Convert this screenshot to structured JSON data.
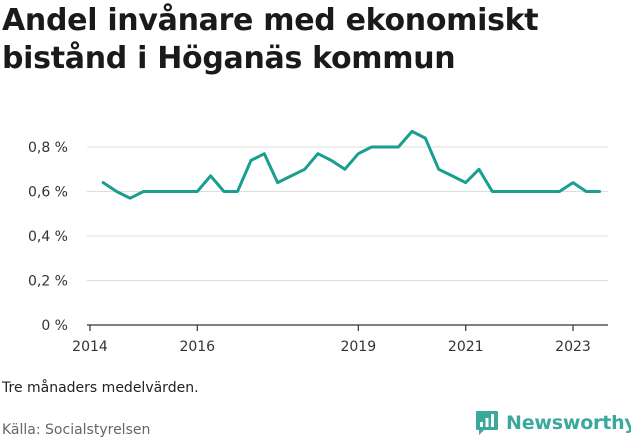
{
  "title": "Andel invånare med ekonomiskt bistånd i Höganäs kommun",
  "note": "Tre månaders medelvärden.",
  "source": "Källa: Socialstyrelsen",
  "brand": {
    "name": "Newsworthy",
    "icon": "newsworthy-logo-icon",
    "color": "#3aa89a"
  },
  "colors": {
    "line": "#1a9e8f",
    "grid": "#dddddd",
    "axis": "#333333"
  },
  "chart_data": {
    "type": "line",
    "title": "Andel invånare med ekonomiskt bistånd i Höganäs kommun",
    "xlabel": "",
    "ylabel": "",
    "y_unit": "%",
    "ylim": [
      0,
      0.85
    ],
    "y_ticks": [
      0,
      0.2,
      0.4,
      0.6,
      0.8
    ],
    "y_tick_labels": [
      "0 %",
      "0,2 %",
      "0,4 %",
      "0,6 %",
      "0,8 %"
    ],
    "x_ticks": [
      "2014-01-01",
      "2016-01-01",
      "2019-01-01",
      "2021-01-01",
      "2023-01-01"
    ],
    "x_tick_labels": [
      "2014",
      "2016",
      "2019",
      "2021",
      "2023"
    ],
    "grid": true,
    "legend": "none",
    "series": [
      {
        "x": [
          "2014-04-01",
          "2014-07-01",
          "2014-10-01",
          "2015-01-01",
          "2015-04-01",
          "2015-07-01",
          "2015-10-01",
          "2016-01-01",
          "2016-04-01",
          "2016-07-01",
          "2016-10-01",
          "2017-01-01",
          "2017-04-01",
          "2017-07-01",
          "2017-10-01",
          "2018-01-01",
          "2018-04-01",
          "2018-07-01",
          "2018-10-01",
          "2019-01-01",
          "2019-04-01",
          "2019-07-01",
          "2019-10-01",
          "2020-01-01",
          "2020-04-01",
          "2020-07-01",
          "2020-10-01",
          "2021-01-01",
          "2021-04-01",
          "2021-07-01",
          "2021-10-01",
          "2022-01-01",
          "2022-04-01",
          "2022-07-01",
          "2022-10-01",
          "2023-01-01",
          "2023-04-01",
          "2023-07-01"
        ],
        "y": [
          0.64,
          0.6,
          0.57,
          0.6,
          0.6,
          0.6,
          0.6,
          0.6,
          0.67,
          0.6,
          0.6,
          0.74,
          0.77,
          0.64,
          0.67,
          0.7,
          0.77,
          0.74,
          0.7,
          0.77,
          0.8,
          0.8,
          0.8,
          0.87,
          0.84,
          0.7,
          0.67,
          0.64,
          0.7,
          0.6,
          0.6,
          0.6,
          0.6,
          0.6,
          0.6,
          0.64,
          0.6,
          0.6
        ]
      }
    ]
  }
}
